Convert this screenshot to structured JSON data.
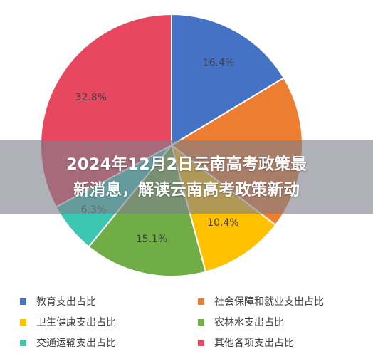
{
  "chart_data": {
    "type": "pie",
    "categories": [
      "教育支出占比",
      "社会保障和就业支出占比",
      "卫生健康支出占比",
      "农林水支出占比",
      "交通运输支出占比",
      "其他各项支出占比"
    ],
    "values": [
      16.4,
      19.0,
      10.4,
      15.1,
      6.3,
      32.8
    ],
    "data_labels": [
      "16.4%",
      "",
      "10.4%",
      "15.1%",
      "6.3%",
      "32.8%"
    ],
    "colors": [
      "#4472c4",
      "#ed7d31",
      "#ffc000",
      "#70ad47",
      "#3cc7b2",
      "#e8485f"
    ],
    "legend_position": "bottom"
  },
  "overlay": {
    "line1": "2024年12月2日云南高考政策最",
    "line2": "新消息，解读云南高考政策新动"
  },
  "legend": {
    "items": [
      {
        "label": "教育支出占比",
        "color": "#4472c4"
      },
      {
        "label": "社会保障和就业支出占比",
        "color": "#ed7d31"
      },
      {
        "label": "卫生健康支出占比",
        "color": "#ffc000"
      },
      {
        "label": "农林水支出占比",
        "color": "#70ad47"
      },
      {
        "label": "交通运输支出占比",
        "color": "#3cc7b2"
      },
      {
        "label": "其他各项支出占比",
        "color": "#e8485f"
      }
    ]
  }
}
